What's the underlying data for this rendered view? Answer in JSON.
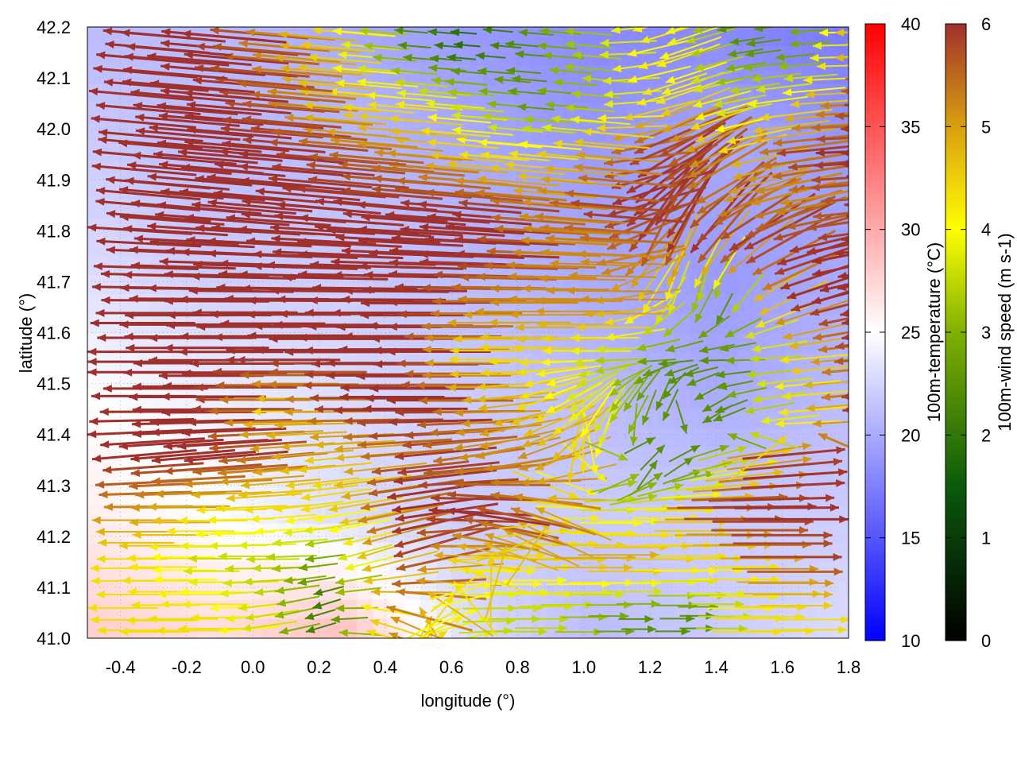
{
  "chart_data": {
    "type": "vector-field-heatmap",
    "xlabel": "longitude (°)",
    "ylabel": "latitude (°)",
    "xlim": [
      -0.5,
      1.8
    ],
    "ylim": [
      41.0,
      42.2
    ],
    "xticks": [
      "-0.4",
      "-0.2",
      "0.0",
      "0.2",
      "0.4",
      "0.6",
      "0.8",
      "1.0",
      "1.2",
      "1.4",
      "1.6",
      "1.8"
    ],
    "xtick_values": [
      -0.4,
      -0.2,
      0.0,
      0.2,
      0.4,
      0.6,
      0.8,
      1.0,
      1.2,
      1.4,
      1.6,
      1.8
    ],
    "yticks": [
      "42.2",
      "42.1",
      "42.0",
      "41.9",
      "41.8",
      "41.7",
      "41.6",
      "41.5",
      "41.4",
      "41.3",
      "41.2",
      "41.1",
      "41.0"
    ],
    "ytick_values": [
      42.2,
      42.1,
      42.0,
      41.9,
      41.8,
      41.7,
      41.6,
      41.5,
      41.4,
      41.3,
      41.2,
      41.1,
      41.0
    ],
    "grid": true,
    "temperature": {
      "label": "100m-temperature (°C)",
      "range": [
        10,
        40
      ],
      "ticks": [
        "10",
        "15",
        "20",
        "25",
        "30",
        "35",
        "40"
      ],
      "tick_values": [
        10,
        15,
        20,
        25,
        30,
        35,
        40
      ],
      "colors": {
        "low": "#0000ff",
        "mid": "#ffffff",
        "high": "#ff0000"
      },
      "lon": [
        -0.5,
        -0.12,
        0.27,
        0.65,
        1.03,
        1.42,
        1.8
      ],
      "lat": [
        42.2,
        41.96,
        41.72,
        41.48,
        41.24,
        41.0
      ],
      "values": [
        [
          21,
          21,
          20,
          19,
          18,
          18,
          17
        ],
        [
          22,
          21,
          21,
          20,
          19,
          20,
          19
        ],
        [
          23,
          22,
          22,
          21,
          20,
          19,
          20
        ],
        [
          25,
          24,
          23,
          22,
          21,
          20,
          21
        ],
        [
          26,
          25,
          23,
          22,
          22,
          22,
          22
        ],
        [
          28,
          27,
          29,
          23,
          21,
          22,
          23
        ]
      ]
    },
    "wind": {
      "label": "100m-wind speed (m s-1)",
      "range": [
        0,
        6
      ],
      "ticks": [
        "0",
        "1",
        "2",
        "3",
        "4",
        "5",
        "6"
      ],
      "tick_values": [
        0,
        1,
        2,
        3,
        4,
        5,
        6
      ],
      "colors": [
        "#000000",
        "#0b5a0b",
        "#7fb000",
        "#ffff00",
        "#d9a010",
        "#a0302c"
      ],
      "lon": [
        -0.4,
        -0.2,
        0.0,
        0.2,
        0.4,
        0.6,
        0.8,
        1.0,
        1.2,
        1.4,
        1.6,
        1.8
      ],
      "lat": [
        42.15,
        42.05,
        41.95,
        41.85,
        41.75,
        41.65,
        41.55,
        41.45,
        41.35,
        41.25,
        41.15,
        41.05
      ],
      "speed": [
        [
          6,
          6,
          5,
          4,
          2,
          1.5,
          2,
          3,
          4,
          2,
          2,
          5
        ],
        [
          6,
          6,
          5.5,
          4,
          4,
          3,
          2,
          3,
          4,
          3,
          4,
          6
        ],
        [
          6,
          6,
          6,
          5.5,
          5,
          4,
          4,
          5,
          6,
          4,
          6,
          6
        ],
        [
          6,
          6,
          6,
          6,
          6,
          6,
          5,
          6,
          6,
          5,
          5,
          6
        ],
        [
          6,
          6,
          6,
          6,
          6,
          6,
          5,
          5,
          6,
          6,
          6,
          6
        ],
        [
          6,
          6,
          6,
          6,
          6,
          5,
          5,
          5,
          4,
          2,
          6,
          6
        ],
        [
          6,
          6,
          6,
          6,
          6,
          4,
          4,
          3,
          2,
          2,
          4,
          6
        ],
        [
          6,
          6,
          4,
          6,
          6,
          5,
          4,
          3,
          2,
          2,
          4,
          6
        ],
        [
          6,
          6,
          5,
          4,
          6,
          5,
          5,
          4,
          2,
          2,
          4,
          6
        ],
        [
          5,
          4,
          4,
          4,
          6,
          6,
          5,
          4,
          3,
          4,
          6,
          6
        ],
        [
          4,
          3,
          3,
          2,
          6,
          4,
          4,
          4,
          5,
          4,
          4,
          6
        ],
        [
          4,
          4,
          3,
          1.5,
          5,
          4,
          3,
          3,
          2,
          2,
          4,
          4
        ]
      ],
      "direction_deg": [
        [
          175,
          175,
          175,
          175,
          175,
          175,
          175,
          175,
          200,
          190,
          185,
          180
        ],
        [
          175,
          175,
          175,
          175,
          175,
          175,
          175,
          175,
          200,
          190,
          185,
          180
        ],
        [
          175,
          175,
          175,
          175,
          175,
          175,
          175,
          175,
          210,
          195,
          185,
          180
        ],
        [
          175,
          175,
          175,
          175,
          175,
          175,
          175,
          175,
          230,
          200,
          190,
          180
        ],
        [
          178,
          178,
          178,
          178,
          178,
          178,
          178,
          178,
          250,
          220,
          195,
          185
        ],
        [
          180,
          180,
          180,
          180,
          180,
          180,
          180,
          180,
          250,
          270,
          200,
          190
        ],
        [
          180,
          180,
          180,
          180,
          180,
          180,
          180,
          180,
          180,
          180,
          185,
          185
        ],
        [
          180,
          180,
          180,
          180,
          180,
          180,
          200,
          220,
          250,
          200,
          185,
          185
        ],
        [
          185,
          185,
          185,
          185,
          185,
          190,
          200,
          250,
          60,
          20,
          10,
          5
        ],
        [
          180,
          180,
          185,
          190,
          190,
          170,
          160,
          0,
          0,
          0,
          0,
          0
        ],
        [
          180,
          180,
          180,
          190,
          200,
          170,
          0,
          0,
          0,
          0,
          0,
          0
        ],
        [
          180,
          180,
          190,
          200,
          160,
          30,
          0,
          0,
          0,
          0,
          0,
          0
        ]
      ]
    }
  }
}
